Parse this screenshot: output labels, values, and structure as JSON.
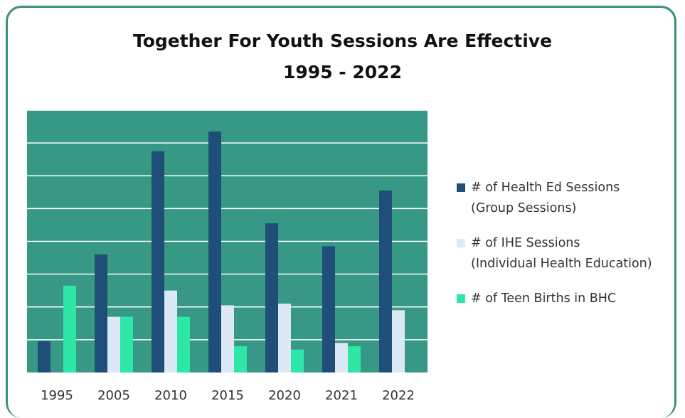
{
  "chart_data": {
    "type": "bar",
    "title": "Together For Youth Sessions Are Effective",
    "subtitle": "1995 - 2022",
    "categories": [
      "1995",
      "2005",
      "2010",
      "2015",
      "2020",
      "2021",
      "2022"
    ],
    "series": [
      {
        "name": "# of Health Ed Sessions",
        "name_line2": "(Group Sessions)",
        "color": "#1f4e79",
        "values": [
          0.95,
          3.6,
          6.75,
          7.35,
          4.55,
          3.85,
          5.55
        ]
      },
      {
        "name": "# of IHE Sessions",
        "name_line2": "(Individual Health Education)",
        "color": "#dde8f6",
        "values": [
          0,
          1.7,
          2.5,
          2.05,
          2.1,
          0.9,
          1.9
        ]
      },
      {
        "name": "# of Teen Births in BHC",
        "name_line2": "",
        "color": "#2ee6a6",
        "values": [
          2.65,
          1.7,
          1.7,
          0.8,
          0.7,
          0.8,
          0
        ]
      }
    ],
    "ylim": [
      0,
      8
    ],
    "grid": true,
    "y_tick_labels_shown": false,
    "legend_position": "right",
    "plot_background": "#379985",
    "gridline_color": "#ffffff"
  }
}
